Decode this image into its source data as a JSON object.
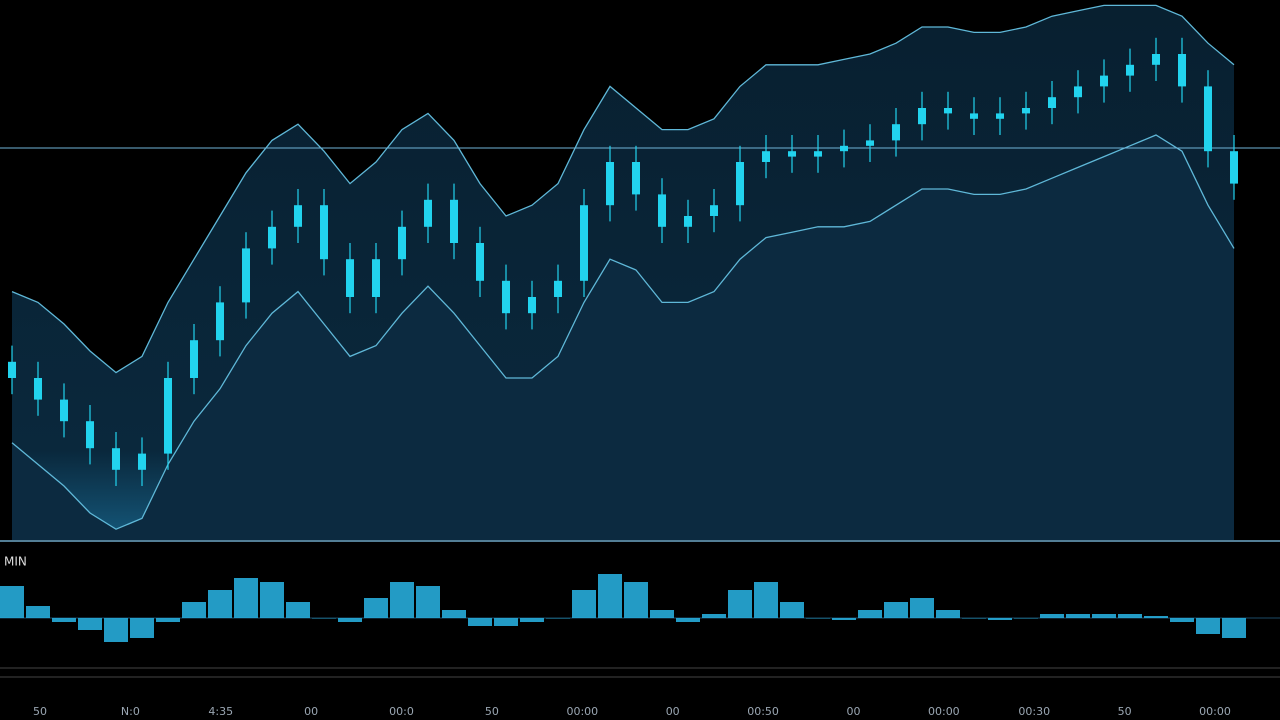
{
  "chart_data": {
    "type": "candlestick",
    "ylim": [
      0,
      100
    ],
    "color": "#22d3ee",
    "band_color": "#5fb8d8",
    "hline": 72.6,
    "hline_color": "#6fb4d8",
    "open": [
      33,
      30,
      26,
      22,
      17,
      13,
      16,
      30,
      37,
      44,
      54,
      58,
      62,
      52,
      45,
      52,
      58,
      63,
      55,
      48,
      42,
      45,
      48,
      62,
      70,
      64,
      58,
      60,
      62,
      70,
      72,
      71,
      72,
      73,
      74,
      77,
      80,
      79,
      78,
      79,
      80,
      82,
      84,
      86,
      88,
      90,
      84,
      72
    ],
    "high": [
      36,
      33,
      29,
      25,
      20,
      19,
      33,
      40,
      47,
      57,
      61,
      65,
      65,
      55,
      55,
      61,
      66,
      66,
      58,
      51,
      48,
      51,
      65,
      73,
      73,
      67,
      63,
      65,
      73,
      75,
      75,
      75,
      76,
      77,
      80,
      83,
      83,
      82,
      82,
      83,
      85,
      87,
      89,
      91,
      93,
      93,
      87,
      75
    ],
    "low": [
      27,
      23,
      19,
      14,
      10,
      10,
      13,
      27,
      34,
      41,
      51,
      55,
      49,
      42,
      42,
      49,
      55,
      52,
      45,
      39,
      39,
      42,
      45,
      59,
      61,
      55,
      55,
      57,
      59,
      67,
      68,
      68,
      69,
      70,
      71,
      74,
      76,
      75,
      75,
      76,
      77,
      79,
      81,
      83,
      85,
      81,
      69,
      63
    ],
    "close": [
      30,
      26,
      22,
      17,
      13,
      16,
      30,
      37,
      44,
      54,
      58,
      62,
      52,
      45,
      52,
      58,
      63,
      55,
      48,
      42,
      45,
      48,
      62,
      70,
      64,
      58,
      60,
      62,
      70,
      72,
      71,
      72,
      73,
      74,
      77,
      80,
      79,
      78,
      79,
      80,
      82,
      84,
      86,
      88,
      90,
      84,
      72,
      66
    ],
    "upper_band": [
      46,
      44,
      40,
      35,
      31,
      34,
      44,
      52,
      60,
      68,
      74,
      77,
      72,
      66,
      70,
      76,
      79,
      74,
      66,
      60,
      62,
      66,
      76,
      84,
      80,
      76,
      76,
      78,
      84,
      88,
      88,
      88,
      89,
      90,
      92,
      95,
      95,
      94,
      94,
      95,
      97,
      98,
      99,
      99,
      99,
      97,
      92,
      88
    ],
    "lower_band": [
      18,
      14,
      10,
      5,
      2,
      4,
      14,
      22,
      28,
      36,
      42,
      46,
      40,
      34,
      36,
      42,
      47,
      42,
      36,
      30,
      30,
      34,
      44,
      52,
      50,
      44,
      44,
      46,
      52,
      56,
      57,
      58,
      58,
      59,
      62,
      65,
      65,
      64,
      64,
      65,
      67,
      69,
      71,
      73,
      75,
      72,
      62,
      54
    ],
    "oscillator": {
      "label": "MIN",
      "ylim": [
        -0.8,
        1.2
      ],
      "color": "#29b6e8",
      "values": [
        0.8,
        0.3,
        -0.1,
        -0.3,
        -0.6,
        -0.5,
        -0.1,
        0.4,
        0.7,
        1.0,
        0.9,
        0.4,
        0,
        -0.1,
        0.5,
        0.9,
        0.8,
        0.2,
        -0.2,
        -0.2,
        -0.1,
        0,
        0.7,
        1.1,
        0.9,
        0.2,
        -0.1,
        0.1,
        0.7,
        0.9,
        0.4,
        0,
        -0.05,
        0.2,
        0.4,
        0.5,
        0.2,
        0,
        -0.05,
        0,
        0.1,
        0.1,
        0.1,
        0.1,
        0.05,
        -0.1,
        -0.4,
        -0.5
      ]
    },
    "x_labels": [
      "50",
      "N:0",
      "4:35",
      "00",
      "00:0",
      "50",
      "00:00",
      "00",
      "00:50",
      "00",
      "00:00",
      "00:30",
      "50",
      "00:00"
    ]
  }
}
